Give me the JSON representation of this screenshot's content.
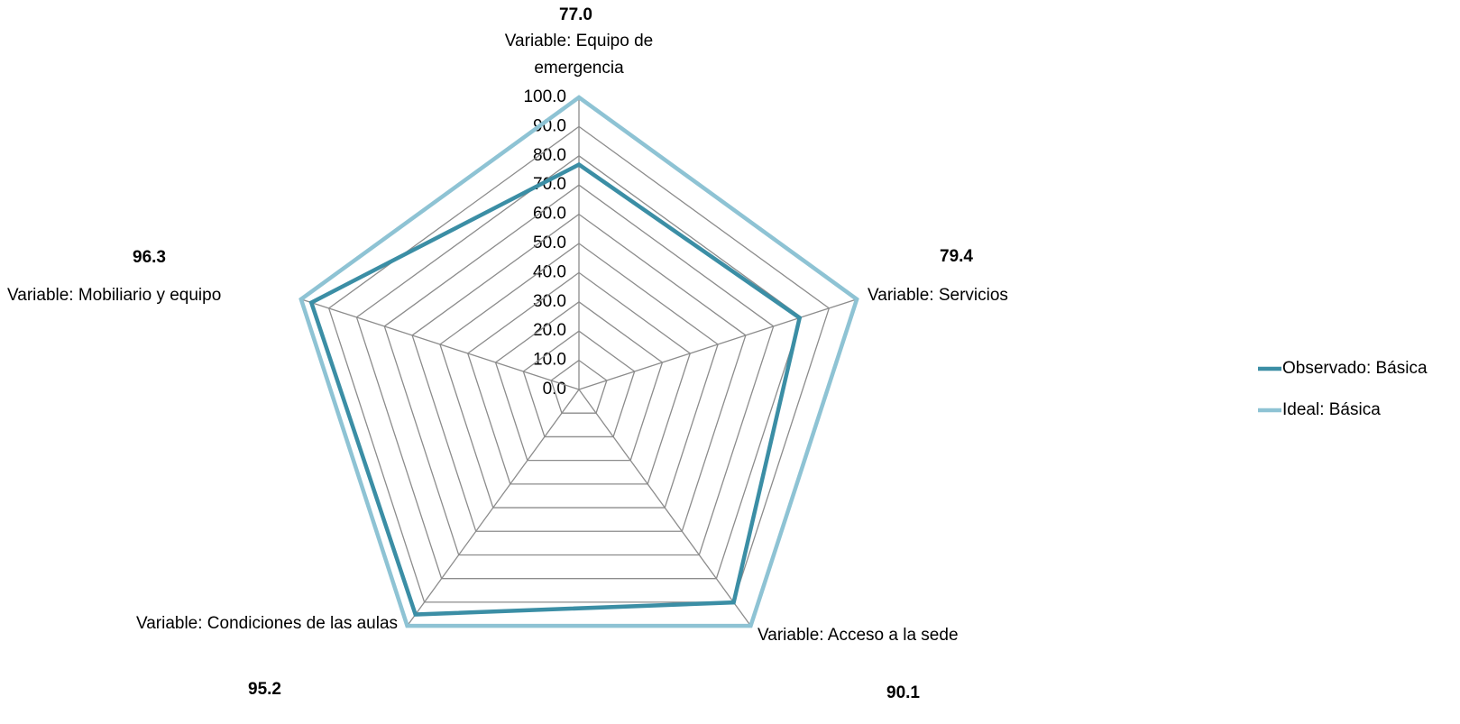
{
  "chart_data": {
    "type": "radar",
    "categories": [
      "Variable: Equipo de emergencia",
      "Variable: Servicios",
      "Variable: Acceso a la sede",
      "Variable: Condiciones de las aulas",
      "Variable: Mobiliario y equipo"
    ],
    "series": [
      {
        "name": "Observado: Básica",
        "color": "#3b8ea5",
        "values": [
          77.0,
          79.4,
          90.1,
          95.2,
          96.3
        ],
        "value_labels": [
          "77.0",
          "79.4",
          "90.1",
          "95.2",
          "96.3"
        ]
      },
      {
        "name": "Ideal: Básica",
        "color": "#8ec3d4",
        "values": [
          100,
          100,
          100,
          100,
          100
        ]
      }
    ],
    "ylim": [
      0,
      100
    ],
    "yticks": [
      {
        "value": 0,
        "label": "0.0"
      },
      {
        "value": 10,
        "label": "10.0"
      },
      {
        "value": 20,
        "label": "20.0"
      },
      {
        "value": 30,
        "label": "30.0"
      },
      {
        "value": 40,
        "label": "40.0"
      },
      {
        "value": 50,
        "label": "50.0"
      },
      {
        "value": 60,
        "label": "60.0"
      },
      {
        "value": 70,
        "label": "70.0"
      },
      {
        "value": 80,
        "label": "80.0"
      },
      {
        "value": 90,
        "label": "90.0"
      },
      {
        "value": 100,
        "label": "100.0"
      }
    ],
    "grid": true,
    "legend": "right"
  }
}
